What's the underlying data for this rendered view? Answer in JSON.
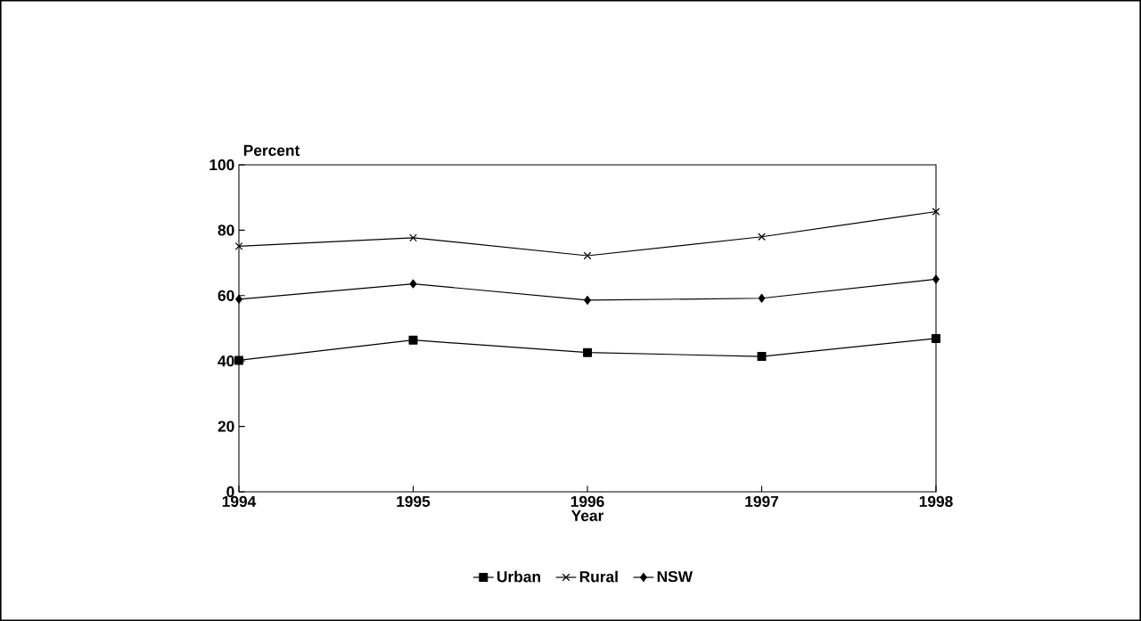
{
  "chart_data": {
    "type": "line",
    "xlabel": "Year",
    "ylabel": "Percent",
    "x": [
      1994,
      1995,
      1996,
      1997,
      1998
    ],
    "xlim": [
      1994,
      1998
    ],
    "xticks": [
      1994,
      1995,
      1996,
      1997,
      1998
    ],
    "ylim": [
      0,
      100
    ],
    "yticks": [
      0,
      20,
      40,
      60,
      80,
      100
    ],
    "series": [
      {
        "name": "Urban",
        "color": "#000000",
        "marker": "square",
        "values": [
          40.2,
          46.4,
          42.6,
          41.4,
          46.9
        ]
      },
      {
        "name": "Rural",
        "color": "#000000",
        "marker": "cross",
        "values": [
          75.1,
          77.7,
          72.2,
          78.0,
          85.7
        ]
      },
      {
        "name": "NSW",
        "color": "#000000",
        "marker": "diamond",
        "values": [
          58.9,
          63.6,
          58.6,
          59.2,
          65.0
        ]
      }
    ],
    "legend": "bottom",
    "grid": false,
    "line_style": "solid"
  }
}
